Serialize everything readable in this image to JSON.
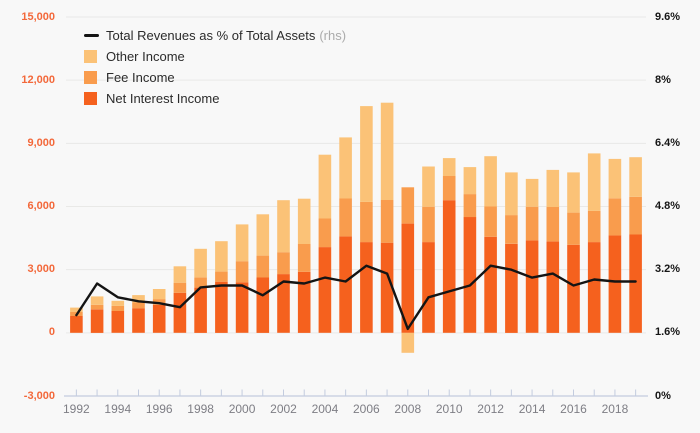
{
  "legend": {
    "line_label": "Total Revenues as % of Total Assets",
    "line_label_suffix": "(rhs)",
    "items": [
      {
        "label": "Other Income",
        "color": "#FBC277"
      },
      {
        "label": "Fee Income",
        "color": "#F99C4D"
      },
      {
        "label": "Net Interest Income",
        "color": "#F5611E"
      }
    ]
  },
  "axes": {
    "left_ticks": [
      "15,000",
      "12,000",
      "9,000",
      "6,000",
      "3,000",
      "0",
      "-3,000"
    ],
    "right_ticks": [
      "9.6%",
      "8%",
      "6.4%",
      "4.8%",
      "3.2%",
      "1.6%",
      "0%"
    ],
    "x_ticks": [
      "1992",
      "1994",
      "1996",
      "1998",
      "2000",
      "2002",
      "2004",
      "2006",
      "2008",
      "2010",
      "2012",
      "2014",
      "2016",
      "2018"
    ]
  },
  "colors": {
    "background": "#F8F8F8",
    "gridline": "#E9E9E7",
    "axis_line": "#C3CCDF",
    "left_axis_text": "#F3683A",
    "right_axis_text": "#161616",
    "x_axis_text": "#7E7E85",
    "line_series": "#141414"
  },
  "chart_data": {
    "type": "bar",
    "subtype": "stacked-bars-with-line-overlay",
    "x": [
      1992,
      1993,
      1994,
      1995,
      1996,
      1997,
      1998,
      1999,
      2000,
      2001,
      2002,
      2003,
      2004,
      2005,
      2006,
      2007,
      2008,
      2009,
      2010,
      2011,
      2012,
      2013,
      2014,
      2015,
      2016,
      2017,
      2018,
      2019
    ],
    "series": [
      {
        "name": "Net Interest Income",
        "type": "bar",
        "stack": "revenue",
        "color": "#F5611E",
        "values": [
          800,
          1120,
          1040,
          1170,
          1330,
          1900,
          2150,
          2430,
          2400,
          2630,
          2790,
          2900,
          4070,
          4580,
          4310,
          4280,
          5190,
          4310,
          6300,
          5500,
          4560,
          4230,
          4390,
          4340,
          4180,
          4310,
          4630,
          4670
        ]
      },
      {
        "name": "Fee Income",
        "type": "bar",
        "stack": "revenue",
        "color": "#F99C4D",
        "values": [
          190,
          210,
          240,
          270,
          270,
          480,
          480,
          480,
          1000,
          1040,
          1040,
          1320,
          1360,
          1800,
          1910,
          2030,
          1720,
          1680,
          1150,
          1090,
          1440,
          1360,
          1600,
          1640,
          1530,
          1480,
          1760,
          1790
        ]
      },
      {
        "name": "Other Income",
        "type": "bar",
        "stack": "revenue",
        "color": "#FBC277",
        "values": [
          210,
          400,
          240,
          350,
          480,
          780,
          1360,
          1440,
          1750,
          1960,
          2470,
          2150,
          3030,
          2900,
          4550,
          4620,
          -950,
          1910,
          850,
          1280,
          2390,
          2030,
          1320,
          1760,
          1910,
          2730,
          1870,
          1880
        ]
      },
      {
        "name": "Total Revenues as % of Total Assets (rhs)",
        "type": "line",
        "axis": "right",
        "color": "#141414",
        "values": [
          2.05,
          2.85,
          2.5,
          2.4,
          2.35,
          2.25,
          2.75,
          2.8,
          2.8,
          2.55,
          2.9,
          2.85,
          3.0,
          2.9,
          3.3,
          3.1,
          1.7,
          2.5,
          2.65,
          2.8,
          3.3,
          3.2,
          3.0,
          3.1,
          2.8,
          2.95,
          2.9,
          2.9
        ]
      }
    ],
    "left_ylim": [
      -3000,
      15000
    ],
    "left_tick_step": 3000,
    "right_ylim": [
      0,
      9.6
    ],
    "right_tick_step": 1.6,
    "x_label_step": 2,
    "grid": "horizontal",
    "legend_position": "top-left"
  }
}
